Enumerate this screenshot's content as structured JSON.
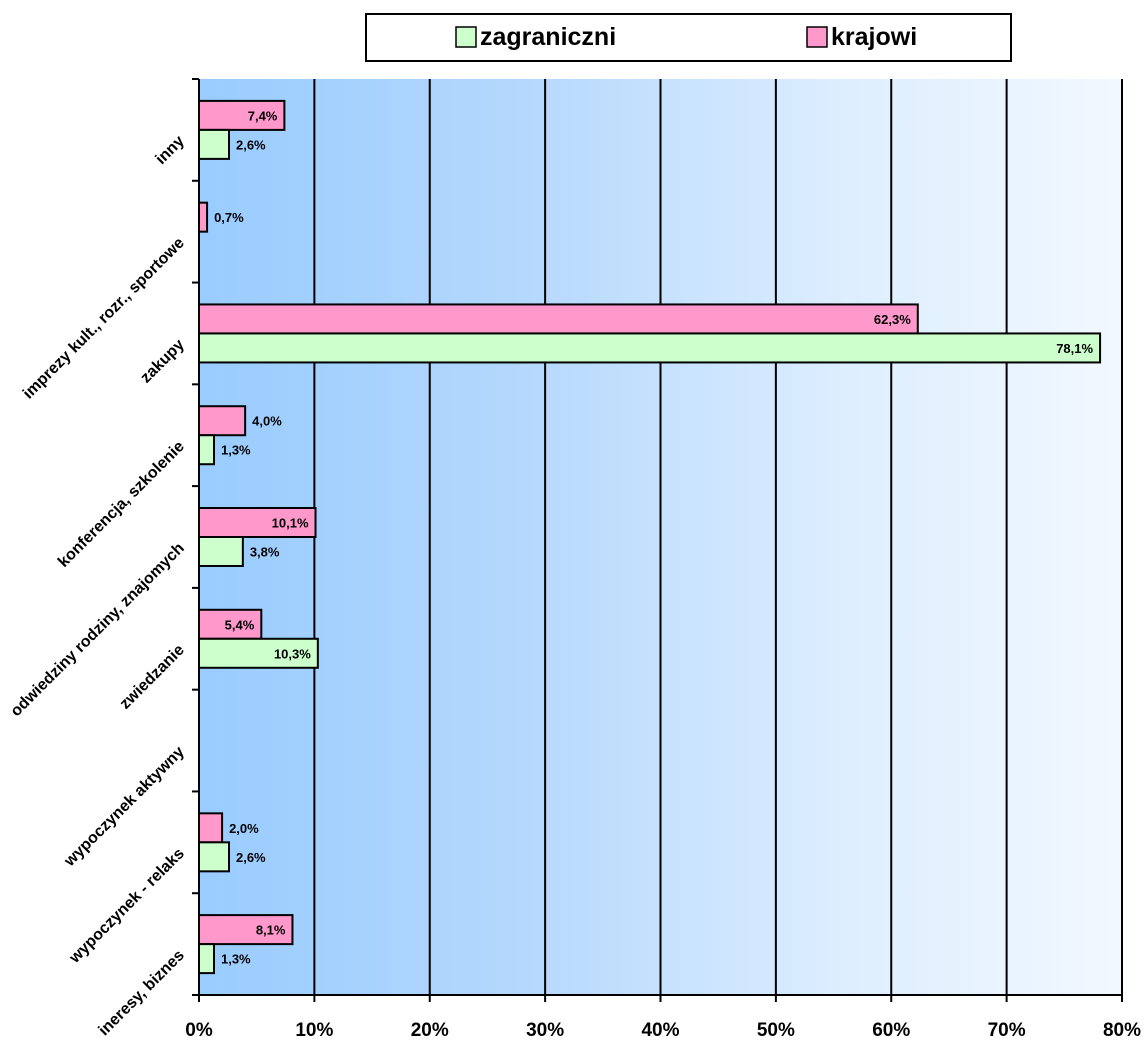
{
  "chart_data": {
    "type": "bar",
    "orientation": "horizontal",
    "categories": [
      "inny",
      "imprezy kult., rozr., sportowe",
      "zakupy",
      "konferencja, szkolenie",
      "odwiedziny rodziny, znajomych",
      "zwiedzanie",
      "wypoczynek aktywny",
      "wypoczynek - relaks",
      "ineresy, biznes"
    ],
    "series": [
      {
        "name": "krajowi",
        "color": "#ff99cc",
        "values": [
          7.4,
          0.7,
          62.3,
          4.0,
          10.1,
          5.4,
          null,
          2.0,
          8.1
        ],
        "labels": [
          "7,4%",
          "0,7%",
          "62,3%",
          "4,0%",
          "10,1%",
          "5,4%",
          "",
          "2,0%",
          "8,1%"
        ]
      },
      {
        "name": "zagraniczni",
        "color": "#ccffcc",
        "values": [
          2.6,
          null,
          78.1,
          1.3,
          3.8,
          10.3,
          null,
          2.6,
          1.3
        ],
        "labels": [
          "2,6%",
          "",
          "78,1%",
          "1,3%",
          "3,8%",
          "10,3%",
          "",
          "2,6%",
          "1,3%"
        ]
      }
    ],
    "xlim": [
      0,
      80
    ],
    "x_ticks": [
      0,
      10,
      20,
      30,
      40,
      50,
      60,
      70,
      80
    ],
    "x_tick_labels": [
      "0%",
      "10%",
      "20%",
      "30%",
      "40%",
      "50%",
      "60%",
      "70%",
      "80%"
    ],
    "grid": true,
    "gridlines": "vertical",
    "background": "blue gradient fading to white",
    "legend_position": "top",
    "legend_order": [
      "zagraniczni",
      "krajowi"
    ],
    "title": "",
    "xlabel": "",
    "ylabel": ""
  }
}
